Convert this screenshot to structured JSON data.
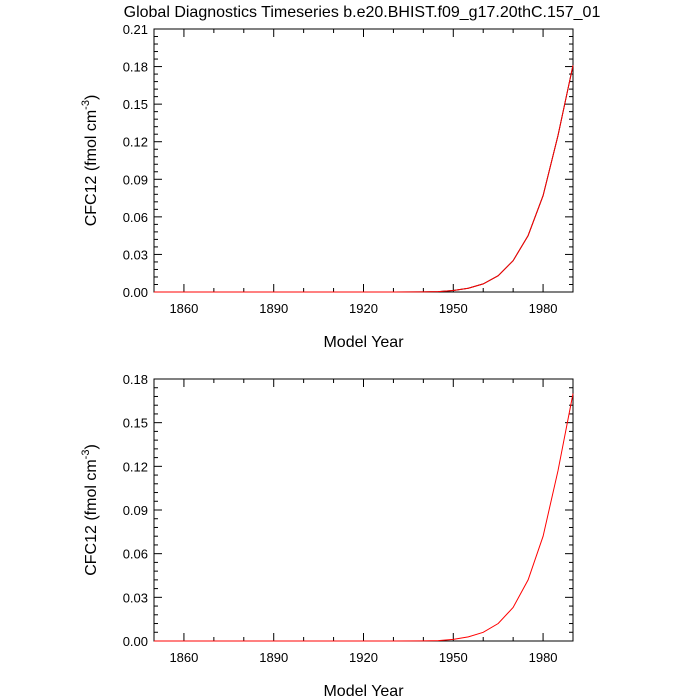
{
  "title": "Global Diagnostics Timeseries b.e20.BHIST.f09_g17.20thC.157_01",
  "chart_data": [
    {
      "type": "line",
      "xlabel": "Model Year",
      "ylabel_main": "CFC12 (fmol cm",
      "ylabel_sup": "-3",
      "ylabel_close": ")",
      "xlim": [
        1850,
        1990
      ],
      "ylim": [
        0,
        0.21
      ],
      "xticks": [
        1860,
        1890,
        1920,
        1950,
        1980
      ],
      "xtick_labels": [
        "1860",
        "1890",
        "1920",
        "1950",
        "1980"
      ],
      "yticks": [
        0,
        0.03,
        0.06,
        0.09,
        0.12,
        0.15,
        0.18,
        0.21
      ],
      "ytick_labels": [
        "0.00",
        "0.03",
        "0.06",
        "0.09",
        "0.12",
        "0.15",
        "0.18",
        "0.21"
      ],
      "series": [
        {
          "color": "#000000",
          "x": [
            1850,
            1930,
            1940,
            1945,
            1950,
            1955,
            1960,
            1965,
            1970,
            1975,
            1980,
            1985,
            1990
          ],
          "y": [
            0,
            0,
            0.0001,
            0.0003,
            0.0012,
            0.003,
            0.0065,
            0.013,
            0.025,
            0.045,
            0.077,
            0.125,
            0.181
          ]
        },
        {
          "color": "#ff0000",
          "x": [
            1850,
            1930,
            1940,
            1945,
            1950,
            1955,
            1960,
            1965,
            1970,
            1975,
            1980,
            1985,
            1990
          ],
          "y": [
            0,
            0,
            0.0001,
            0.0003,
            0.0012,
            0.003,
            0.0065,
            0.013,
            0.025,
            0.045,
            0.077,
            0.125,
            0.181
          ]
        }
      ]
    },
    {
      "type": "line",
      "xlabel": "Model Year",
      "ylabel_main": "CFC12 (fmol cm",
      "ylabel_sup": "-3",
      "ylabel_close": ")",
      "xlim": [
        1850,
        1990
      ],
      "ylim": [
        0,
        0.18
      ],
      "xticks": [
        1860,
        1890,
        1920,
        1950,
        1980
      ],
      "xtick_labels": [
        "1860",
        "1890",
        "1920",
        "1950",
        "1980"
      ],
      "yticks": [
        0,
        0.03,
        0.06,
        0.09,
        0.12,
        0.15,
        0.18
      ],
      "ytick_labels": [
        "0.00",
        "0.03",
        "0.06",
        "0.09",
        "0.12",
        "0.15",
        "0.18"
      ],
      "series": [
        {
          "color": "#ff0000",
          "x": [
            1850,
            1930,
            1940,
            1945,
            1950,
            1955,
            1960,
            1965,
            1970,
            1975,
            1980,
            1985,
            1990
          ],
          "y": [
            0,
            0,
            0.0001,
            0.0003,
            0.0011,
            0.0028,
            0.006,
            0.012,
            0.023,
            0.042,
            0.072,
            0.117,
            0.17
          ]
        }
      ]
    }
  ]
}
